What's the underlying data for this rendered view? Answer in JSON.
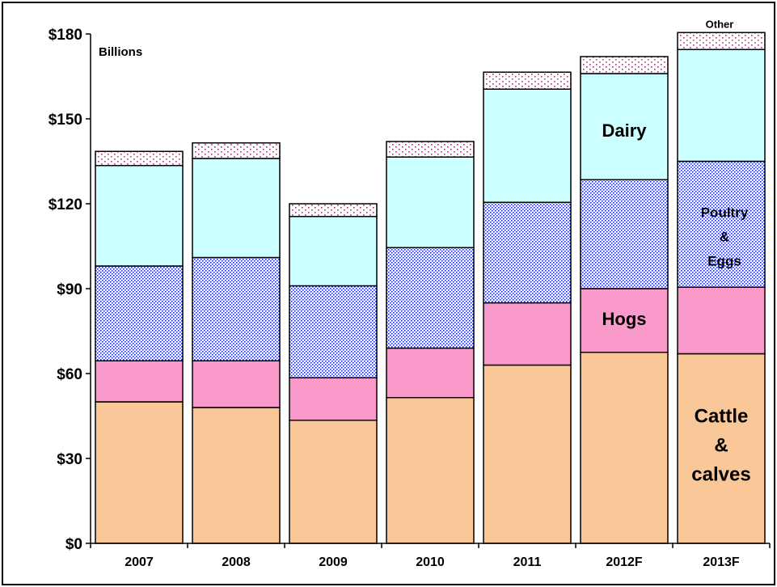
{
  "chart_data": {
    "type": "bar",
    "stacked": true,
    "unit_label": "Billions",
    "categories": [
      "2007",
      "2008",
      "2009",
      "2010",
      "2011",
      "2012F",
      "2013F"
    ],
    "ylim": [
      0,
      180
    ],
    "yticks": [
      "$0",
      "$30",
      "$60",
      "$90",
      "$120",
      "$150",
      "$180"
    ],
    "ytick_values": [
      0,
      30,
      60,
      90,
      120,
      150,
      180
    ],
    "grid": false,
    "series": [
      {
        "name": "Cattle & calves",
        "label_lines": [
          "Cattle",
          "&",
          "calves"
        ],
        "color": "#fac898",
        "pattern": "solid",
        "values": [
          50,
          48,
          43.5,
          51.5,
          63,
          67.5,
          67
        ]
      },
      {
        "name": "Hogs",
        "label_lines": [
          "Hogs"
        ],
        "color": "#f99acb",
        "pattern": "solid",
        "values": [
          14.5,
          16.5,
          15,
          17.5,
          22,
          22.5,
          23.5
        ]
      },
      {
        "name": "Poultry & Eggs",
        "label_lines": [
          "Poultry",
          "&",
          "Eggs"
        ],
        "color": "#1a2bd6",
        "pattern": "dots-blue",
        "values": [
          33.5,
          36.5,
          32.5,
          35.5,
          35.5,
          38.5,
          44.5
        ]
      },
      {
        "name": "Dairy",
        "label_lines": [
          "Dairy"
        ],
        "color": "#ccffff",
        "pattern": "solid",
        "values": [
          35.5,
          35,
          24.5,
          32,
          40,
          37.5,
          39.5
        ]
      },
      {
        "name": "Other",
        "label_lines": [
          "Other"
        ],
        "color": "#d01a80",
        "pattern": "dots-pink",
        "values": [
          5,
          5.5,
          4.5,
          5.5,
          6,
          6,
          6
        ]
      }
    ]
  }
}
